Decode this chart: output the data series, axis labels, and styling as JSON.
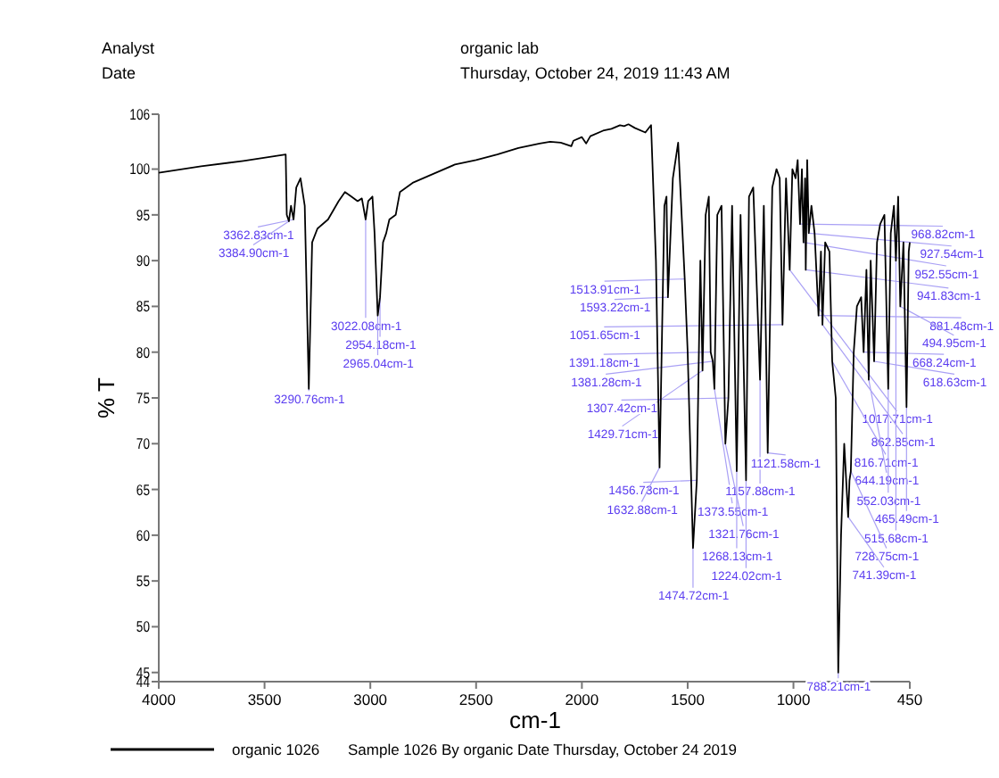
{
  "chart_data": {
    "type": "line",
    "title": "organic lab",
    "subtitle": "Thursday, October 24, 2019 11:43 AM",
    "xlabel": "cm-1",
    "ylabel": "% T",
    "xlim": [
      4000,
      450
    ],
    "ylim": [
      44,
      106
    ],
    "xticks": [
      4000,
      3500,
      3000,
      2500,
      2000,
      1500,
      1000,
      450
    ],
    "yticks": [
      44,
      45,
      50,
      55,
      60,
      65,
      70,
      75,
      80,
      85,
      90,
      95,
      100,
      106
    ],
    "grid": false,
    "legend": "bottom",
    "marker": "none",
    "line_style": "solid",
    "x": [
      4000,
      3800,
      3600,
      3400,
      3395,
      3384.9,
      3375,
      3362.83,
      3350,
      3330,
      3310,
      3290.76,
      3275,
      3250,
      3200,
      3150,
      3120,
      3090,
      3060,
      3040,
      3022.08,
      3010,
      2990,
      2980,
      2965.04,
      2954.18,
      2940,
      2925,
      2910,
      2880,
      2860,
      2800,
      2700,
      2600,
      2500,
      2400,
      2300,
      2200,
      2150,
      2100,
      2050,
      2040,
      2000,
      1980,
      1960,
      1900,
      1860,
      1820,
      1800,
      1780,
      1750,
      1700,
      1673,
      1650,
      1632.88,
      1610,
      1600,
      1593.22,
      1570,
      1545,
      1513.91,
      1500,
      1474.72,
      1456.73,
      1440,
      1429.71,
      1415,
      1400,
      1391.18,
      1381.28,
      1373.55,
      1360,
      1340,
      1321.76,
      1307.42,
      1290,
      1268.13,
      1250,
      1224.02,
      1210,
      1190,
      1157.88,
      1140,
      1121.58,
      1100,
      1080,
      1065,
      1051.65,
      1035,
      1017.71,
      1005,
      990,
      980,
      968.82,
      960,
      952.55,
      945,
      941.83,
      935,
      927.54,
      915,
      900,
      881.48,
      870,
      862.85,
      850,
      830,
      816.71,
      800,
      788.21,
      775,
      760,
      741.39,
      735,
      728.75,
      715,
      700,
      680,
      668.24,
      655,
      644.19,
      635,
      618.63,
      605,
      590,
      570,
      552.03,
      540,
      525,
      515.68,
      505,
      494.95,
      480,
      465.49,
      455,
      450
    ],
    "series": [
      {
        "name": "organic 1026",
        "color": "#000000",
        "values": [
          99.6,
          100.3,
          100.9,
          101.6,
          95,
          94.3,
          96,
          94.5,
          98,
          99,
          96,
          76,
          92,
          93.5,
          94.5,
          96.5,
          97.5,
          97,
          96.5,
          96.8,
          94.5,
          96.5,
          97,
          93,
          84,
          86,
          92,
          93,
          94.5,
          95,
          97.5,
          98.5,
          99.5,
          100.5,
          101,
          101.6,
          102.3,
          102.8,
          103,
          102.9,
          102.5,
          103.1,
          103.5,
          102.8,
          103.6,
          104.2,
          104.4,
          104.8,
          104.7,
          104.9,
          104.5,
          104,
          104.8,
          90,
          67.4,
          96,
          97,
          86,
          99,
          102.9,
          88,
          80,
          58.6,
          66,
          90,
          78,
          95,
          97,
          80,
          79,
          76,
          95,
          96,
          70,
          75,
          96,
          67,
          95,
          66,
          97,
          98,
          77,
          96,
          69,
          98,
          100,
          99,
          83,
          99,
          89,
          100,
          99,
          101,
          94,
          100,
          92,
          99,
          89,
          101,
          93,
          96,
          93,
          84,
          91,
          83,
          92,
          91,
          79,
          75,
          45,
          60,
          70,
          62,
          66,
          67,
          80,
          85,
          86,
          80,
          89,
          77,
          90,
          79,
          92,
          94,
          95,
          76,
          93,
          96,
          90,
          97,
          85,
          92,
          74,
          91,
          92
        ]
      }
    ],
    "annotations": [
      "Analyst",
      "Date",
      "Sample 1026 By organic Date Thursday, October 24 2019",
      {
        "text": "3362.83cm-1",
        "x": 3362.83,
        "y": 94.5
      },
      {
        "text": "3384.90cm-1",
        "x": 3384.9,
        "y": 94.3
      },
      {
        "text": "3290.76cm-1",
        "x": 3290.76,
        "y": 76
      },
      {
        "text": "3022.08cm-1",
        "x": 3022.08,
        "y": 94.5
      },
      {
        "text": "2954.18cm-1",
        "x": 2954.18,
        "y": 86
      },
      {
        "text": "2965.04cm-1",
        "x": 2965.04,
        "y": 84
      },
      {
        "text": "1513.91cm-1",
        "x": 1513.91,
        "y": 88
      },
      {
        "text": "1593.22cm-1",
        "x": 1593.22,
        "y": 86
      },
      {
        "text": "1391.18cm-1",
        "x": 1391.18,
        "y": 80
      },
      {
        "text": "1381.28cm-1",
        "x": 1381.28,
        "y": 79
      },
      {
        "text": "1429.71cm-1",
        "x": 1429.71,
        "y": 78
      },
      {
        "text": "1373.55cm-1",
        "x": 1373.55,
        "y": 76
      },
      {
        "text": "1157.88cm-1",
        "x": 1157.88,
        "y": 77
      },
      {
        "text": "1307.42cm-1",
        "x": 1307.42,
        "y": 75
      },
      {
        "text": "1321.76cm-1",
        "x": 1321.76,
        "y": 70
      },
      {
        "text": "1121.58cm-1",
        "x": 1121.58,
        "y": 69
      },
      {
        "text": "1268.13cm-1",
        "x": 1268.13,
        "y": 67
      },
      {
        "text": "1456.73cm-1",
        "x": 1456.73,
        "y": 66
      },
      {
        "text": "1224.02cm-1",
        "x": 1224.02,
        "y": 66
      },
      {
        "text": "1632.88cm-1",
        "x": 1632.88,
        "y": 67.4
      },
      {
        "text": "1474.72cm-1",
        "x": 1474.72,
        "y": 58.6
      },
      {
        "text": "968.82cm-1",
        "x": 968.82,
        "y": 94
      },
      {
        "text": "927.54cm-1",
        "x": 927.54,
        "y": 93
      },
      {
        "text": "952.55cm-1",
        "x": 952.55,
        "y": 92
      },
      {
        "text": "1017.71cm-1",
        "x": 1017.71,
        "y": 89
      },
      {
        "text": "941.83cm-1",
        "x": 941.83,
        "y": 89
      },
      {
        "text": "881.48cm-1",
        "x": 881.48,
        "y": 84
      },
      {
        "text": "1051.65cm-1",
        "x": 1051.65,
        "y": 83
      },
      {
        "text": "862.85cm-1",
        "x": 862.85,
        "y": 83
      },
      {
        "text": "816.71cm-1",
        "x": 816.71,
        "y": 79
      },
      {
        "text": "668.24cm-1",
        "x": 668.24,
        "y": 80
      },
      {
        "text": "618.63cm-1",
        "x": 618.63,
        "y": 79
      },
      {
        "text": "644.19cm-1",
        "x": 644.19,
        "y": 77
      },
      {
        "text": "552.03cm-1",
        "x": 552.03,
        "y": 76
      },
      {
        "text": "465.49cm-1",
        "x": 465.49,
        "y": 74
      },
      {
        "text": "515.68cm-1",
        "x": 515.68,
        "y": 90
      },
      {
        "text": "494.95cm-1",
        "x": 494.95,
        "y": 85
      },
      {
        "text": "728.75cm-1",
        "x": 728.75,
        "y": 67
      },
      {
        "text": "741.39cm-1",
        "x": 741.39,
        "y": 62
      },
      {
        "text": "788.21cm-1",
        "x": 788.21,
        "y": 45
      }
    ]
  }
}
